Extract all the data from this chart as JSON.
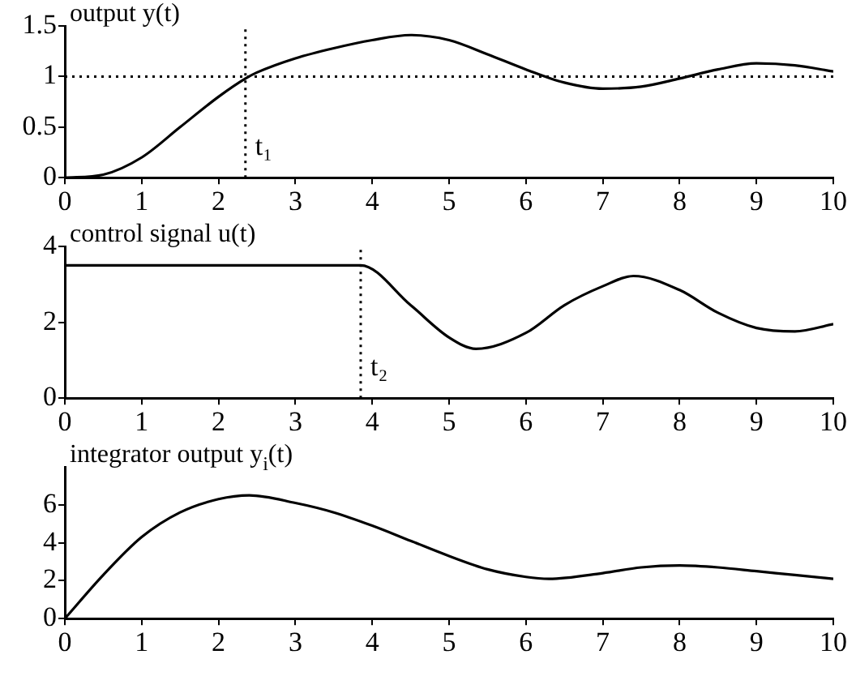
{
  "chart_data": [
    {
      "type": "line",
      "title": "output y(t)",
      "x": [
        0,
        0.5,
        1,
        1.5,
        2,
        2.35,
        2.5,
        3,
        3.5,
        4,
        4.5,
        5,
        5.5,
        6,
        6.5,
        7,
        7.5,
        8,
        8.5,
        9,
        9.5,
        10
      ],
      "series": [
        {
          "color": "#000000",
          "values": [
            0,
            0.03,
            0.2,
            0.5,
            0.8,
            0.98,
            1.04,
            1.18,
            1.28,
            1.36,
            1.41,
            1.36,
            1.22,
            1.07,
            0.94,
            0.88,
            0.9,
            0.98,
            1.07,
            1.13,
            1.11,
            1.05
          ]
        }
      ],
      "xlim": [
        0,
        10
      ],
      "xticks": [
        0,
        1,
        2,
        3,
        4,
        5,
        6,
        7,
        8,
        9,
        10
      ],
      "ylim": [
        0,
        1.5
      ],
      "yticks": [
        0,
        0.5,
        1,
        1.5
      ],
      "grid": false,
      "legend": false,
      "marker": "none",
      "ref_lines": [
        {
          "axis": "y",
          "value": 1,
          "line_style": "dotted",
          "color": "#000000"
        },
        {
          "axis": "x",
          "value": 2.35,
          "label": "t₁",
          "line_style": "dotted",
          "color": "#000000"
        }
      ]
    },
    {
      "type": "line",
      "title": "control signal u(t)",
      "x": [
        0,
        1,
        2,
        3,
        3.85,
        4.5,
        5,
        5.35,
        6,
        6.5,
        7,
        7.4,
        8,
        8.5,
        9,
        9.5,
        10
      ],
      "series": [
        {
          "color": "#000000",
          "values": [
            3.5,
            3.5,
            3.5,
            3.5,
            3.5,
            2.45,
            1.6,
            1.3,
            1.72,
            2.45,
            2.95,
            3.22,
            2.85,
            2.25,
            1.85,
            1.76,
            1.95
          ]
        }
      ],
      "xlim": [
        0,
        10
      ],
      "xticks": [
        0,
        1,
        2,
        3,
        4,
        5,
        6,
        7,
        8,
        9,
        10
      ],
      "ylim": [
        0,
        4
      ],
      "yticks": [
        0,
        2,
        4
      ],
      "grid": false,
      "legend": false,
      "marker": "none",
      "ref_lines": [
        {
          "axis": "x",
          "value": 3.85,
          "label": "t₂",
          "line_style": "dotted",
          "color": "#000000"
        }
      ]
    },
    {
      "type": "line",
      "title": "integrator output y$_{i}$(t)",
      "x": [
        0,
        0.5,
        1,
        1.5,
        2,
        2.4,
        3,
        3.5,
        4,
        4.5,
        5,
        5.5,
        6,
        6.3,
        7,
        7.5,
        8,
        8.5,
        9,
        9.5,
        10
      ],
      "series": [
        {
          "color": "#000000",
          "values": [
            0,
            2.3,
            4.3,
            5.6,
            6.3,
            6.5,
            6.1,
            5.6,
            4.9,
            4.1,
            3.3,
            2.6,
            2.2,
            2.1,
            2.4,
            2.7,
            2.8,
            2.7,
            2.5,
            2.3,
            2.1
          ]
        }
      ],
      "xlim": [
        0,
        10
      ],
      "xticks": [
        0,
        1,
        2,
        3,
        4,
        5,
        6,
        7,
        8,
        9,
        10
      ],
      "ylim": [
        0,
        8
      ],
      "yticks": [
        0,
        2,
        4,
        6
      ],
      "grid": false,
      "legend": false,
      "marker": "none"
    }
  ]
}
